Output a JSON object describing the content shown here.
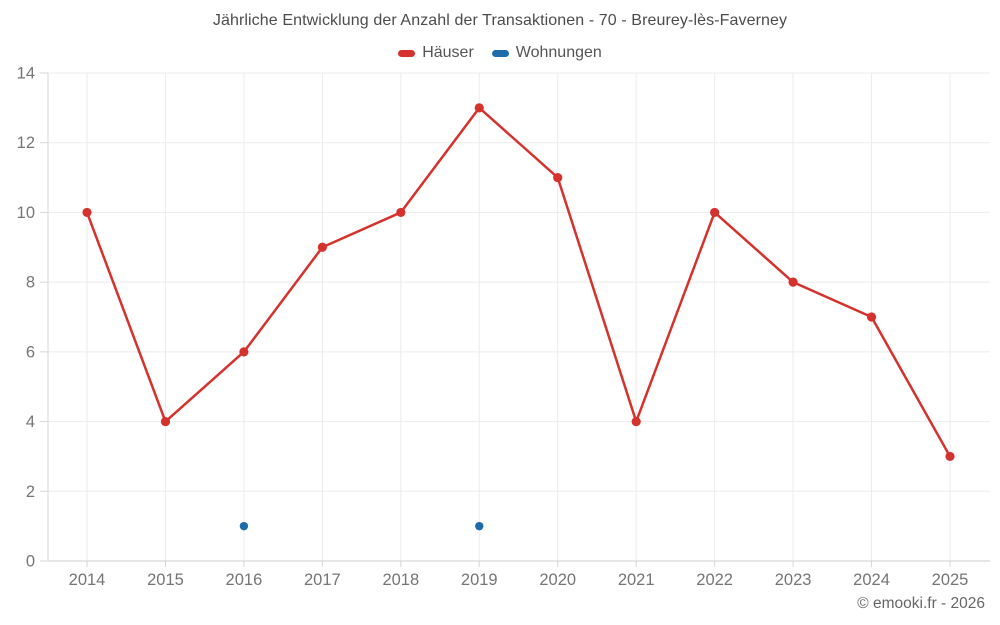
{
  "title": "Jährliche Entwicklung der Anzahl der Transaktionen - 70 - Breurey-lès-Faverney",
  "legend": {
    "items": [
      {
        "label": "Häuser",
        "color": "#d5322d"
      },
      {
        "label": "Wohnungen",
        "color": "#1b6ca8"
      }
    ]
  },
  "footer": {
    "text": "© emooki.fr - 2026"
  },
  "colors": {
    "grid": "#ebebeb",
    "axis": "#d6d6d6",
    "tick_label": "#757575",
    "title": "#4c4c4c",
    "haeuser": "#d5322d",
    "wohnungen": "#1b6ca8"
  },
  "chart_data": {
    "type": "line",
    "title": "Jährliche Entwicklung der Anzahl der Transaktionen - 70 - Breurey-lès-Faverney",
    "categories": [
      "2014",
      "2015",
      "2016",
      "2017",
      "2018",
      "2019",
      "2020",
      "2021",
      "2022",
      "2023",
      "2024",
      "2025"
    ],
    "series": [
      {
        "name": "Häuser",
        "color": "#d5322d",
        "show_line": true,
        "values": [
          10,
          4,
          6,
          9,
          10,
          13,
          11,
          4,
          10,
          8,
          7,
          3
        ]
      },
      {
        "name": "Wohnungen",
        "color": "#1b6ca8",
        "show_line": false,
        "values": [
          null,
          null,
          1,
          null,
          null,
          1,
          null,
          null,
          null,
          null,
          null,
          null
        ]
      }
    ],
    "xlabel": "",
    "ylabel": "",
    "ylim": [
      0,
      14
    ],
    "yticks": [
      0,
      2,
      4,
      6,
      8,
      10,
      12,
      14
    ],
    "grid": true,
    "legend_position": "top"
  }
}
